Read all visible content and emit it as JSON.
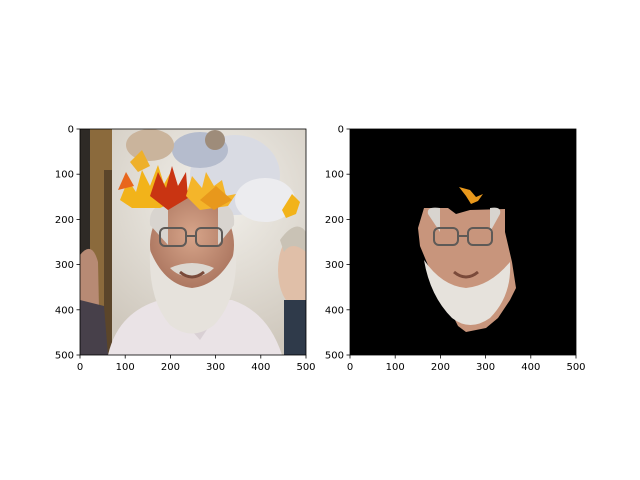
{
  "chart_data": [
    {
      "type": "image",
      "content": "photo of a smiling white-bearded man in glasses wearing a crown of yellow and orange autumn leaves; part of another person visible on the left and right edges",
      "xlim": [
        0,
        500
      ],
      "ylim": [
        500,
        0
      ],
      "xticks": [
        0,
        100,
        200,
        300,
        400,
        500
      ],
      "yticks": [
        0,
        100,
        200,
        300,
        400,
        500
      ],
      "xtick_labels": [
        "0",
        "100",
        "200",
        "300",
        "400",
        "500"
      ],
      "ytick_labels": [
        "0",
        "100",
        "200",
        "300",
        "400",
        "500"
      ]
    },
    {
      "type": "image",
      "content": "segmentation mask output: black background with only the man's face and beard region kept, plus a small orange leaf fragment above the head",
      "xlim": [
        0,
        500
      ],
      "ylim": [
        500,
        0
      ],
      "xticks": [
        0,
        100,
        200,
        300,
        400,
        500
      ],
      "yticks": [
        0,
        100,
        200,
        300,
        400,
        500
      ],
      "xtick_labels": [
        "0",
        "100",
        "200",
        "300",
        "400",
        "500"
      ],
      "ytick_labels": [
        "0",
        "100",
        "200",
        "300",
        "400",
        "500"
      ]
    }
  ],
  "colors": {
    "mask_background": "#000000",
    "leaf_yellow": "#f2b31a",
    "leaf_orange": "#e8661c",
    "leaf_red": "#c93412",
    "skin": "#c8957c",
    "beard": "#e6e2dc",
    "shirt": "#eae3e6"
  }
}
